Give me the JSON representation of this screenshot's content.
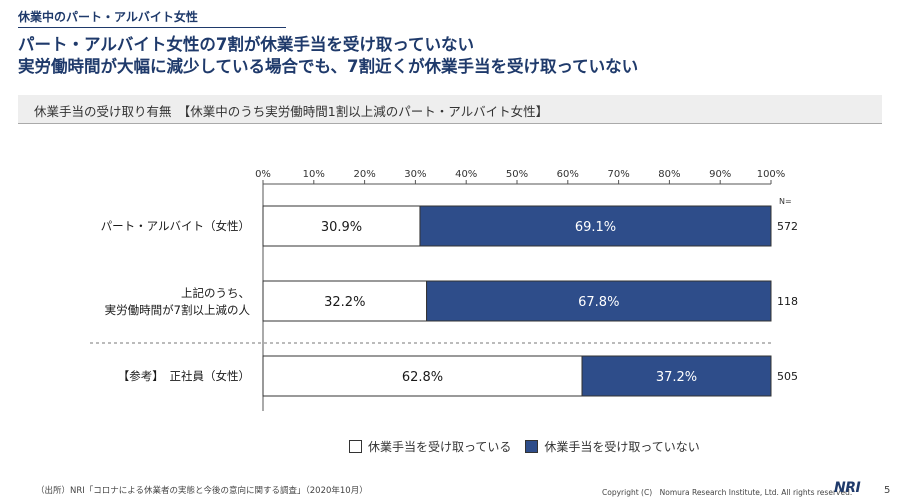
{
  "header": {
    "section_tag": "休業中のパート・アルバイト女性",
    "headline_1": "パート・アルバイト女性の7割が休業手当を受け取っていない",
    "headline_2": "実労働時間が大幅に減少している場合でも、7割近くが休業手当を受け取っていない",
    "subtitle": "休業手当の受け取り有無　【休業中のうち実労働時間1割以上減のパート・アルバイト女性】"
  },
  "colors": {
    "received": "#ffffff",
    "not_received": "#2e4d8a",
    "title": "#1f3a6b"
  },
  "chart_data": {
    "type": "bar",
    "orientation": "horizontal",
    "stacked": "percent",
    "xlim": [
      0,
      100
    ],
    "x_ticks": [
      "0%",
      "10%",
      "20%",
      "30%",
      "40%",
      "50%",
      "60%",
      "70%",
      "80%",
      "90%",
      "100%"
    ],
    "n_header": "N=",
    "categories": [
      {
        "label_lines": [
          "パート・アルバイト（女性）"
        ],
        "n": "572"
      },
      {
        "label_lines": [
          "上記のうち、",
          "実労働時間が7割以上減の人"
        ],
        "n": "118"
      },
      {
        "label_lines": [
          "【参考】　正社員（女性）"
        ],
        "n": "505"
      }
    ],
    "series": [
      {
        "name": "休業手当を受け取っている",
        "values": [
          30.9,
          32.2,
          62.8
        ],
        "labels": [
          "30.9%",
          "32.2%",
          "62.8%"
        ]
      },
      {
        "name": "休業手当を受け取っていない",
        "values": [
          69.1,
          67.8,
          37.2
        ],
        "labels": [
          "69.1%",
          "67.8%",
          "37.2%"
        ]
      }
    ],
    "grid": false,
    "legend_position": "bottom"
  },
  "footer": {
    "source": "（出所）NRI「コロナによる休業者の実態と今後の意向に関する調査」（2020年10月）",
    "copyright": "Copyright (C)　Nomura Research Institute, Ltd. All rights reserved.",
    "logo": "NRI",
    "page": "5"
  }
}
